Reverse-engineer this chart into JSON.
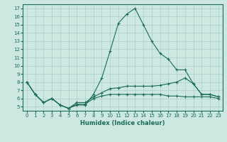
{
  "xlabel": "Humidex (Indice chaleur)",
  "bg_color": "#cce8e0",
  "line_color": "#1a6b5a",
  "grid_color": "#aacfc8",
  "x_ticks": [
    0,
    1,
    2,
    3,
    4,
    5,
    6,
    7,
    8,
    9,
    10,
    11,
    12,
    13,
    14,
    15,
    16,
    17,
    18,
    19,
    20,
    21,
    22,
    23
  ],
  "y_ticks": [
    5,
    6,
    7,
    8,
    9,
    10,
    11,
    12,
    13,
    14,
    15,
    16,
    17
  ],
  "xlim": [
    -0.5,
    23.5
  ],
  "ylim": [
    4.5,
    17.5
  ],
  "line1_x": [
    0,
    1,
    2,
    3,
    4,
    5,
    6,
    7,
    8,
    9,
    10,
    11,
    12,
    13,
    14,
    15,
    16,
    17,
    18,
    19,
    20,
    21,
    22,
    23
  ],
  "line1_y": [
    8.0,
    6.5,
    5.5,
    6.0,
    5.2,
    4.8,
    5.2,
    5.2,
    6.5,
    8.5,
    11.8,
    15.2,
    16.3,
    17.0,
    15.0,
    13.0,
    11.5,
    10.8,
    9.5,
    9.5,
    7.8,
    6.5,
    6.5,
    6.2
  ],
  "line2_x": [
    0,
    1,
    2,
    3,
    4,
    5,
    6,
    7,
    8,
    9,
    10,
    11,
    12,
    13,
    14,
    15,
    16,
    17,
    18,
    19,
    20,
    21,
    22,
    23
  ],
  "line2_y": [
    8.0,
    6.5,
    5.5,
    6.0,
    5.2,
    4.8,
    5.5,
    5.5,
    6.2,
    6.7,
    7.2,
    7.3,
    7.5,
    7.5,
    7.5,
    7.5,
    7.6,
    7.8,
    8.0,
    8.5,
    7.8,
    6.5,
    6.5,
    6.2
  ],
  "line3_x": [
    0,
    1,
    2,
    3,
    4,
    5,
    6,
    7,
    8,
    9,
    10,
    11,
    12,
    13,
    14,
    15,
    16,
    17,
    18,
    19,
    20,
    21,
    22,
    23
  ],
  "line3_y": [
    8.0,
    6.5,
    5.5,
    6.0,
    5.2,
    4.8,
    5.3,
    5.3,
    6.0,
    6.3,
    6.5,
    6.5,
    6.5,
    6.5,
    6.5,
    6.5,
    6.5,
    6.3,
    6.3,
    6.2,
    6.2,
    6.2,
    6.2,
    6.0
  ]
}
